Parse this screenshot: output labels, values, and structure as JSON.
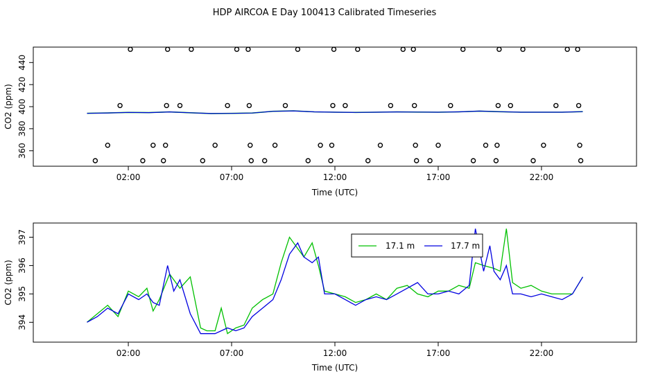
{
  "title": "HDP AIRCOA E  Day 100413  Calibrated Timeseries",
  "colors": {
    "green": "#00c000",
    "blue": "#0000e0",
    "axis": "#000000"
  },
  "chart_data": [
    {
      "type": "scatter",
      "xlabel": "Time (UTC)",
      "ylabel": "CO2 (ppm)",
      "xlim": [
        -2.6,
        26.6
      ],
      "ylim": [
        346,
        454
      ],
      "xticks": [
        2,
        7,
        12,
        17,
        22
      ],
      "xtick_labels": [
        "02:00",
        "07:00",
        "12:00",
        "17:00",
        "22:00"
      ],
      "yticks": [
        360,
        380,
        400,
        420,
        440
      ],
      "yticks_text": [
        "360",
        "380",
        "400",
        "420",
        "440"
      ],
      "line_series": {
        "name": "17.7 m",
        "x": [
          0,
          1,
          2,
          3,
          4,
          5,
          6,
          7,
          8,
          9,
          10,
          11,
          12,
          13,
          14,
          15,
          16,
          17,
          18,
          19,
          20,
          21,
          22,
          23,
          24
        ],
        "y": [
          394.0,
          394.3,
          394.8,
          394.6,
          395.2,
          394.5,
          393.8,
          393.9,
          394.2,
          395.8,
          396.2,
          395.3,
          395.0,
          394.8,
          395.0,
          395.2,
          395.1,
          395.0,
          395.3,
          396.0,
          395.4,
          395.0,
          395.0,
          395.0,
          395.5
        ]
      },
      "points": [
        {
          "x": 0.4,
          "y": 351
        },
        {
          "x": 1.0,
          "y": 365
        },
        {
          "x": 1.6,
          "y": 401
        },
        {
          "x": 2.1,
          "y": 452
        },
        {
          "x": 2.7,
          "y": 351
        },
        {
          "x": 3.2,
          "y": 365
        },
        {
          "x": 3.7,
          "y": 351
        },
        {
          "x": 3.8,
          "y": 365
        },
        {
          "x": 3.85,
          "y": 401
        },
        {
          "x": 3.9,
          "y": 452
        },
        {
          "x": 4.5,
          "y": 401
        },
        {
          "x": 5.05,
          "y": 452
        },
        {
          "x": 5.6,
          "y": 351
        },
        {
          "x": 6.2,
          "y": 365
        },
        {
          "x": 6.8,
          "y": 401
        },
        {
          "x": 7.25,
          "y": 452
        },
        {
          "x": 7.8,
          "y": 452
        },
        {
          "x": 7.85,
          "y": 401
        },
        {
          "x": 7.9,
          "y": 365
        },
        {
          "x": 7.95,
          "y": 351
        },
        {
          "x": 8.6,
          "y": 351
        },
        {
          "x": 9.1,
          "y": 365
        },
        {
          "x": 9.6,
          "y": 401
        },
        {
          "x": 10.2,
          "y": 452
        },
        {
          "x": 10.7,
          "y": 351
        },
        {
          "x": 11.3,
          "y": 365
        },
        {
          "x": 11.8,
          "y": 351
        },
        {
          "x": 11.85,
          "y": 365
        },
        {
          "x": 11.9,
          "y": 401
        },
        {
          "x": 11.95,
          "y": 452
        },
        {
          "x": 12.5,
          "y": 401
        },
        {
          "x": 13.1,
          "y": 452
        },
        {
          "x": 13.6,
          "y": 351
        },
        {
          "x": 14.2,
          "y": 365
        },
        {
          "x": 14.7,
          "y": 401
        },
        {
          "x": 15.3,
          "y": 452
        },
        {
          "x": 15.8,
          "y": 452
        },
        {
          "x": 15.85,
          "y": 401
        },
        {
          "x": 15.9,
          "y": 365
        },
        {
          "x": 15.95,
          "y": 351
        },
        {
          "x": 16.6,
          "y": 351
        },
        {
          "x": 17.0,
          "y": 365
        },
        {
          "x": 17.6,
          "y": 401
        },
        {
          "x": 18.2,
          "y": 452
        },
        {
          "x": 18.7,
          "y": 351
        },
        {
          "x": 19.3,
          "y": 365
        },
        {
          "x": 19.8,
          "y": 351
        },
        {
          "x": 19.85,
          "y": 365
        },
        {
          "x": 19.9,
          "y": 401
        },
        {
          "x": 19.95,
          "y": 452
        },
        {
          "x": 20.5,
          "y": 401
        },
        {
          "x": 21.1,
          "y": 452
        },
        {
          "x": 21.6,
          "y": 351
        },
        {
          "x": 22.1,
          "y": 365
        },
        {
          "x": 22.7,
          "y": 401
        },
        {
          "x": 23.25,
          "y": 452
        },
        {
          "x": 23.75,
          "y": 452
        },
        {
          "x": 23.8,
          "y": 401
        },
        {
          "x": 23.85,
          "y": 365
        },
        {
          "x": 23.9,
          "y": 351
        }
      ]
    },
    {
      "type": "line",
      "xlabel": "Time (UTC)",
      "ylabel": "CO2 (ppm)",
      "xlim": [
        -2.6,
        26.6
      ],
      "ylim": [
        393.3,
        397.5
      ],
      "xticks": [
        2,
        7,
        12,
        17,
        22
      ],
      "xtick_labels": [
        "02:00",
        "07:00",
        "12:00",
        "17:00",
        "22:00"
      ],
      "yticks": [
        394,
        395,
        396,
        397
      ],
      "yticks_text": [
        "394",
        "395",
        "396",
        "397"
      ],
      "legend": {
        "position": "top-right"
      },
      "series": [
        {
          "name": "17.1 m",
          "color": "#00c000",
          "x": [
            0,
            0.5,
            1.0,
            1.5,
            2.0,
            2.5,
            2.9,
            3.2,
            3.5,
            4.0,
            4.5,
            5.0,
            5.5,
            5.8,
            6.2,
            6.5,
            6.8,
            7.2,
            7.6,
            8.0,
            8.5,
            9.0,
            9.4,
            9.8,
            10.2,
            10.5,
            10.9,
            11.2,
            11.5,
            12.0,
            12.5,
            13.0,
            13.5,
            14.0,
            14.5,
            15.0,
            15.5,
            16.0,
            16.5,
            17.0,
            17.5,
            18.0,
            18.5,
            18.8,
            19.2,
            19.7,
            20.0,
            20.3,
            20.6,
            21.0,
            21.5,
            22.0,
            22.5,
            23.0,
            23.5,
            24.0
          ],
          "y": [
            394.0,
            394.3,
            394.6,
            394.2,
            395.1,
            394.9,
            395.2,
            394.4,
            394.8,
            395.7,
            395.2,
            395.6,
            393.8,
            393.7,
            393.7,
            394.5,
            393.6,
            393.8,
            393.9,
            394.5,
            394.8,
            395.0,
            396.1,
            397.0,
            396.6,
            396.3,
            396.8,
            396.0,
            395.1,
            395.0,
            394.9,
            394.7,
            394.8,
            395.0,
            394.8,
            395.2,
            395.3,
            395.0,
            394.9,
            395.1,
            395.1,
            395.3,
            395.2,
            396.1,
            396.0,
            395.9,
            395.8,
            397.3,
            395.4,
            395.2,
            395.3,
            395.1,
            395.0,
            395.0,
            395.0,
            395.6
          ]
        },
        {
          "name": "17.7 m",
          "color": "#0000e0",
          "x": [
            0,
            0.5,
            1.0,
            1.5,
            2.0,
            2.5,
            2.9,
            3.2,
            3.5,
            3.9,
            4.2,
            4.5,
            5.0,
            5.5,
            5.8,
            6.2,
            6.5,
            6.8,
            7.2,
            7.6,
            8.0,
            8.5,
            9.0,
            9.4,
            9.8,
            10.2,
            10.5,
            10.9,
            11.2,
            11.5,
            12.0,
            12.5,
            13.0,
            13.5,
            14.0,
            14.5,
            15.0,
            15.5,
            16.0,
            16.5,
            17.0,
            17.5,
            18.0,
            18.5,
            18.8,
            19.2,
            19.5,
            19.7,
            20.0,
            20.3,
            20.6,
            21.0,
            21.5,
            22.0,
            22.5,
            23.0,
            23.5,
            24.0
          ],
          "y": [
            394.0,
            394.2,
            394.5,
            394.3,
            395.0,
            394.8,
            395.0,
            394.7,
            394.6,
            396.0,
            395.1,
            395.5,
            394.3,
            393.6,
            393.6,
            393.6,
            393.7,
            393.8,
            393.7,
            393.8,
            394.2,
            394.5,
            394.8,
            395.5,
            396.4,
            396.8,
            396.3,
            396.1,
            396.3,
            395.0,
            395.0,
            394.8,
            394.6,
            394.8,
            394.9,
            394.8,
            395.0,
            395.2,
            395.4,
            395.0,
            395.0,
            395.1,
            395.0,
            395.3,
            397.3,
            395.8,
            396.7,
            395.8,
            395.5,
            396.0,
            395.0,
            395.0,
            394.9,
            395.0,
            394.9,
            394.8,
            395.0,
            395.6
          ]
        }
      ]
    }
  ]
}
